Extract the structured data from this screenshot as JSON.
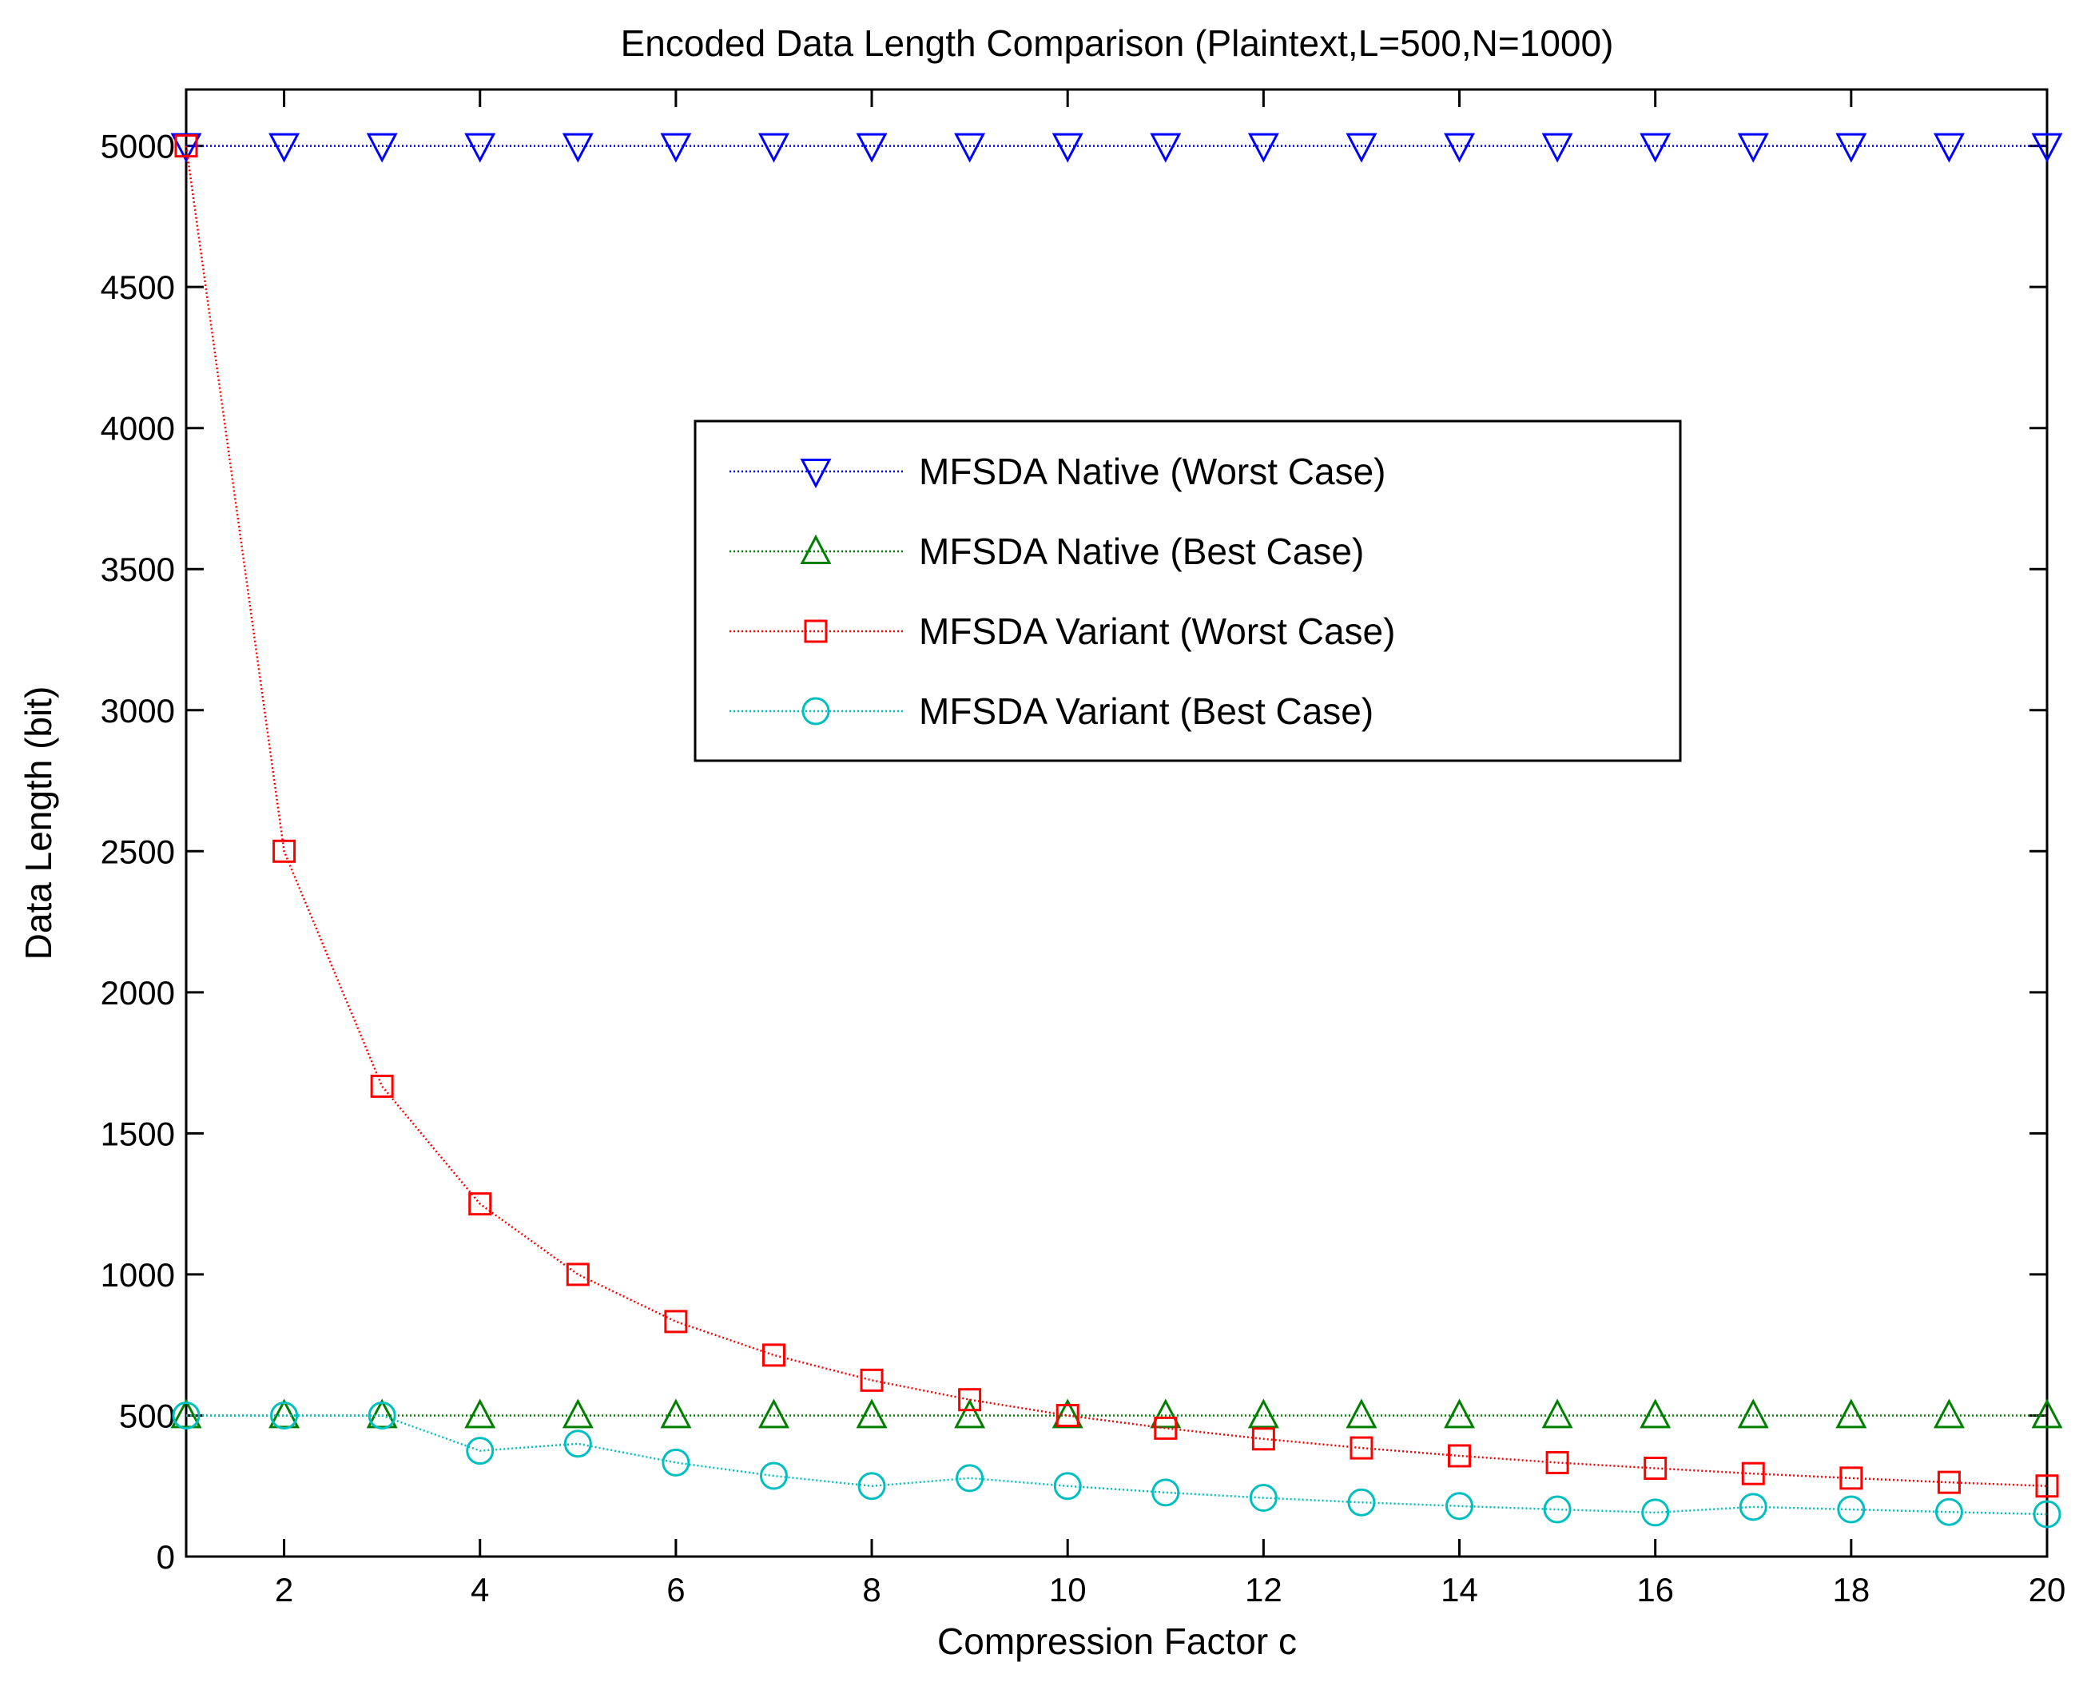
{
  "chart_data": {
    "type": "line",
    "title": "Encoded Data Length Comparison (Plaintext,L=500,N=1000)",
    "xlabel": "Compression Factor c",
    "ylabel": "Data Length (bit)",
    "xlim": [
      1,
      20
    ],
    "ylim": [
      0,
      5200
    ],
    "xticks": [
      2,
      4,
      6,
      8,
      10,
      12,
      14,
      16,
      18,
      20
    ],
    "yticks": [
      0,
      500,
      1000,
      1500,
      2000,
      2500,
      3000,
      3500,
      4000,
      4500,
      5000
    ],
    "grid": false,
    "legend_position": "upper-center",
    "x": [
      1,
      2,
      3,
      4,
      5,
      6,
      7,
      8,
      9,
      10,
      11,
      12,
      13,
      14,
      15,
      16,
      17,
      18,
      19,
      20
    ],
    "series": [
      {
        "name": "MFSDA Native (Worst Case)",
        "color": "#0000ff",
        "marker": "triangle-down",
        "line": "dotted",
        "values": [
          5000,
          5000,
          5000,
          5000,
          5000,
          5000,
          5000,
          5000,
          5000,
          5000,
          5000,
          5000,
          5000,
          5000,
          5000,
          5000,
          5000,
          5000,
          5000,
          5000
        ]
      },
      {
        "name": "MFSDA Native (Best Case)",
        "color": "#007f00",
        "marker": "triangle-up",
        "line": "dotted",
        "values": [
          500,
          500,
          500,
          500,
          500,
          500,
          500,
          500,
          500,
          500,
          500,
          500,
          500,
          500,
          500,
          500,
          500,
          500,
          500,
          500
        ]
      },
      {
        "name": "MFSDA Variant (Worst Case)",
        "color": "#ff0000",
        "marker": "square",
        "line": "dotted",
        "values": [
          5000,
          2500,
          1667,
          1250,
          1000,
          833,
          714,
          625,
          556,
          500,
          455,
          417,
          385,
          357,
          333,
          313,
          294,
          278,
          263,
          250
        ]
      },
      {
        "name": "MFSDA Variant (Best Case)",
        "color": "#00bfbf",
        "marker": "circle",
        "line": "dotted",
        "values": [
          500,
          500,
          500,
          375,
          400,
          333,
          286,
          250,
          278,
          250,
          227,
          208,
          192,
          179,
          167,
          156,
          176,
          167,
          158,
          150
        ]
      }
    ]
  }
}
